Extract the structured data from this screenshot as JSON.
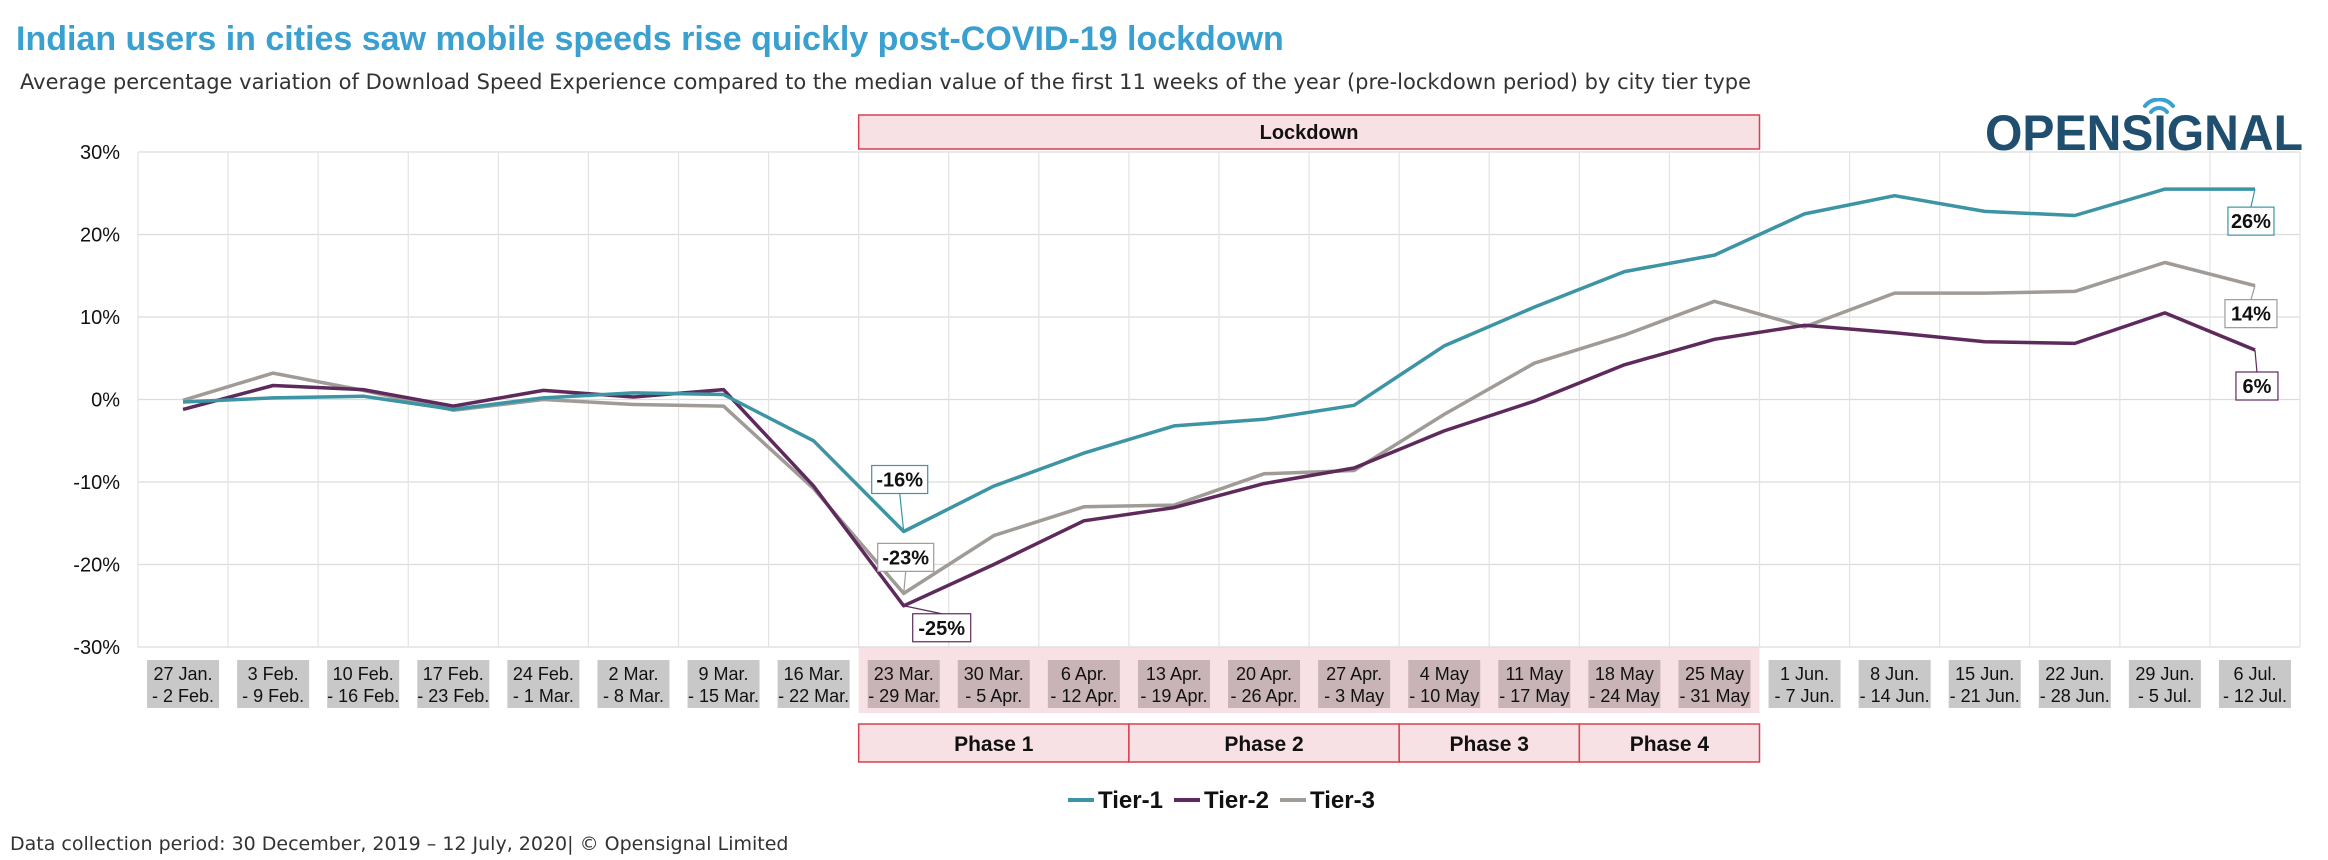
{
  "title": "Indian users in cities saw mobile speeds rise quickly post-COVID-19 lockdown",
  "subtitle": "Average percentage variation of Download Speed Experience compared to the median value of the first 11 weeks of the year (pre-lockdown period) by city tier type",
  "logo_text": "OPENSIGNAL",
  "footer": "Data collection period: 30 December, 2019 – 12 July, 2020| © Opensignal Limited",
  "colors": {
    "tier1": "#3c94a4",
    "tier2": "#5e2a5c",
    "tier3": "#a09b96",
    "lockdown_fill": "#f8e1e4",
    "lockdown_border": "#d94050",
    "logo": "#1f4e6e",
    "logo_accent": "#3aa0d0"
  },
  "chart_data": {
    "type": "line",
    "categories": [
      [
        "27 Jan.",
        "- 2 Feb."
      ],
      [
        "3 Feb.",
        "- 9 Feb."
      ],
      [
        "10 Feb.",
        "- 16 Feb."
      ],
      [
        "17 Feb.",
        "- 23 Feb."
      ],
      [
        "24 Feb.",
        "- 1 Mar."
      ],
      [
        "2 Mar.",
        "- 8 Mar."
      ],
      [
        "9 Mar.",
        "- 15 Mar."
      ],
      [
        "16 Mar.",
        "- 22 Mar."
      ],
      [
        "23 Mar.",
        "- 29 Mar."
      ],
      [
        "30 Mar.",
        "- 5 Apr."
      ],
      [
        "6 Apr.",
        "- 12 Apr."
      ],
      [
        "13 Apr.",
        "- 19 Apr."
      ],
      [
        "20 Apr.",
        "- 26 Apr."
      ],
      [
        "27 Apr.",
        "- 3 May"
      ],
      [
        "4 May",
        "- 10 May"
      ],
      [
        "11 May",
        "- 17 May"
      ],
      [
        "18 May",
        "- 24 May"
      ],
      [
        "25 May",
        "- 31 May"
      ],
      [
        "1 Jun.",
        "- 7 Jun."
      ],
      [
        "8 Jun.",
        "- 14 Jun."
      ],
      [
        "15 Jun.",
        "- 21 Jun."
      ],
      [
        "22 Jun.",
        "- 28 Jun."
      ],
      [
        "29 Jun.",
        "- 5 Jul."
      ],
      [
        "6 Jul.",
        "- 12 Jul."
      ]
    ],
    "ylim": [
      -30,
      30
    ],
    "yticks": [
      "-30%",
      "-20%",
      "-10%",
      "0%",
      "10%",
      "20%",
      "30%"
    ],
    "ytick_values": [
      -30,
      -20,
      -10,
      0,
      10,
      20,
      30
    ],
    "grid": true,
    "legend_position": "bottom-center",
    "series": [
      {
        "name": "Tier-1",
        "color_key": "tier1",
        "values": [
          -0.3,
          0.2,
          0.4,
          -1.2,
          0.2,
          0.8,
          0.6,
          -5,
          -16,
          -10.5,
          -6.5,
          -3.2,
          -2.4,
          -0.7,
          6.5,
          11.2,
          15.5,
          17.5,
          22.5,
          24.7,
          22.8,
          22.3,
          25.5,
          25.5
        ]
      },
      {
        "name": "Tier-2",
        "color_key": "tier2",
        "values": [
          -1.2,
          1.7,
          1.2,
          -0.8,
          1.1,
          0.3,
          1.2,
          -10.5,
          -25,
          -20,
          -14.7,
          -13.1,
          -10.2,
          -8.3,
          -3.8,
          -0.2,
          4.2,
          7.3,
          9,
          8.1,
          7,
          6.8,
          10.5,
          6
        ]
      },
      {
        "name": "Tier-3",
        "color_key": "tier3",
        "values": [
          -0.1,
          3.2,
          1.1,
          -1.3,
          0,
          -0.6,
          -0.8,
          -10.8,
          -23.5,
          -16.5,
          -13,
          -12.8,
          -9,
          -8.6,
          -1.8,
          4.4,
          7.8,
          11.9,
          8.8,
          12.9,
          12.9,
          13.1,
          16.6,
          13.8
        ]
      }
    ],
    "annotations": [
      {
        "text": "-16%",
        "series": 0,
        "index": 8
      },
      {
        "text": "-23%",
        "series": 2,
        "index": 8
      },
      {
        "text": "-25%",
        "series": 1,
        "index": 8
      },
      {
        "text": "26%",
        "series": 0,
        "index": 23
      },
      {
        "text": "14%",
        "series": 2,
        "index": 23
      },
      {
        "text": "6%",
        "series": 1,
        "index": 23
      }
    ],
    "lockdown": {
      "label": "Lockdown",
      "start_index": 8,
      "end_index": 17
    },
    "phases": [
      {
        "label": "Phase 1",
        "start_index": 8,
        "end_index": 10
      },
      {
        "label": "Phase 2",
        "start_index": 11,
        "end_index": 13
      },
      {
        "label": "Phase 3",
        "start_index": 14,
        "end_index": 15
      },
      {
        "label": "Phase 4",
        "start_index": 16,
        "end_index": 17
      }
    ]
  }
}
